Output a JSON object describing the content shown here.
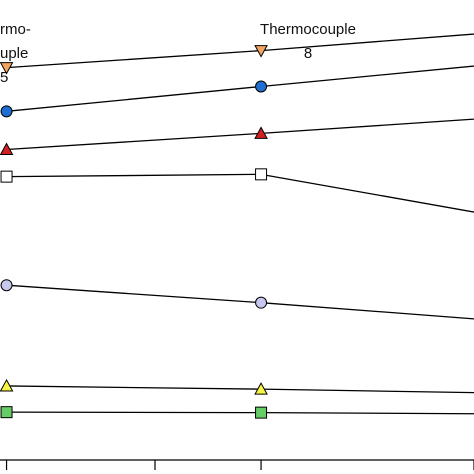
{
  "annotations": {
    "left_line1": "rmo-",
    "left_line2": "uple",
    "left_number": "5",
    "mid_line1": "Thermocouple",
    "mid_number": "8"
  },
  "chart_data": {
    "type": "line",
    "x": [
      5,
      8,
      11
    ],
    "xlim": [
      4.97,
      10.51
    ],
    "ylim": [
      0,
      100
    ],
    "grid": false,
    "legend": "none",
    "series": [
      {
        "marker": "triangle-down",
        "color": "#f4a460",
        "values": [
          85.3,
          89.0,
          93.3
        ]
      },
      {
        "marker": "circle",
        "color": "#1f6fd1",
        "values": [
          75.8,
          81.2,
          86.5
        ]
      },
      {
        "marker": "triangle-up",
        "color": "#d42020",
        "values": [
          67.5,
          71.0,
          74.7
        ]
      },
      {
        "marker": "square",
        "color": "#ffffff",
        "values": [
          61.6,
          62.1,
          52.3
        ]
      },
      {
        "marker": "circle",
        "color": "#c8c8ee",
        "values": [
          38.0,
          34.2,
          30.0
        ]
      },
      {
        "marker": "triangle-up",
        "color": "#f5f542",
        "values": [
          16.1,
          15.4,
          14.5
        ]
      },
      {
        "marker": "square",
        "color": "#66cc66",
        "values": [
          10.4,
          10.3,
          10.0
        ]
      }
    ],
    "x_ticks": [
      5,
      6.75,
      8,
      10.51
    ]
  }
}
